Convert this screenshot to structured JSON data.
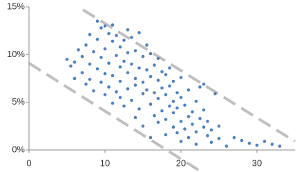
{
  "chart_data": {
    "type": "scatter",
    "color": "#4f81bd",
    "x": [
      5,
      5.5,
      6,
      6,
      6.5,
      7,
      7,
      7.5,
      7.5,
      8,
      8,
      8,
      8.5,
      8.5,
      9,
      9,
      9,
      9.5,
      9.5,
      9.5,
      10,
      10,
      10,
      10,
      10.5,
      10.5,
      10.5,
      11,
      11,
      11,
      11,
      11.5,
      11.5,
      11.5,
      12,
      12,
      12,
      12,
      12.5,
      12.5,
      12.5,
      13,
      13,
      13,
      13,
      13.5,
      13.5,
      13.5,
      14,
      14,
      14,
      14,
      14.5,
      14.5,
      14.5,
      15,
      15,
      15,
      15,
      15.5,
      15.5,
      15.5,
      16,
      16,
      16,
      16,
      16.5,
      16.5,
      16.5,
      17,
      17,
      17,
      17,
      17.5,
      17.5,
      17.5,
      18,
      18,
      18,
      18,
      18.5,
      18.5,
      18.5,
      19,
      19,
      19,
      19,
      19.5,
      19.5,
      19.5,
      20,
      20,
      20,
      20,
      20.5,
      20.5,
      21,
      21,
      21,
      21.5,
      21.5,
      22,
      22,
      22,
      22.5,
      22.5,
      23,
      23,
      23.5,
      23.5,
      24,
      24,
      25,
      25,
      26,
      27,
      28,
      29,
      30,
      31,
      32,
      33,
      24.5,
      23
    ],
    "values": [
      9.5,
      8.8,
      9.2,
      7.5,
      10.5,
      8.1,
      9.8,
      6.9,
      11.0,
      7.4,
      9.0,
      12.1,
      6.2,
      10.3,
      8.5,
      13.5,
      11.6,
      7.1,
      12.8,
      9.7,
      13.0,
      8.0,
      5.8,
      10.6,
      12.2,
      6.6,
      9.1,
      11.4,
      7.8,
      4.9,
      13.1,
      9.9,
      6.1,
      12.0,
      8.7,
      10.8,
      5.5,
      7.2,
      11.5,
      9.3,
      4.6,
      12.6,
      8.1,
      6.4,
      10.2,
      9.0,
      5.2,
      11.8,
      7.5,
      3.4,
      10.4,
      6.8,
      8.6,
      4.3,
      12.3,
      7.1,
      9.8,
      5.9,
      2.5,
      8.4,
      6.3,
      11.0,
      7.7,
      4.8,
      10.1,
      1.3,
      6.0,
      8.9,
      3.6,
      7.3,
      5.4,
      9.6,
      2.9,
      6.5,
      8.2,
      4.1,
      5.8,
      7.9,
      3.2,
      1.6,
      6.7,
      4.6,
      8.6,
      5.1,
      2.4,
      7.2,
      3.9,
      6.0,
      1.8,
      4.4,
      5.5,
      3.0,
      0.9,
      7.6,
      4.7,
      2.2,
      6.3,
      3.5,
      1.3,
      4.0,
      2.7,
      5.1,
      1.9,
      0.6,
      3.3,
      6.6,
      2.4,
      4.2,
      1.5,
      3.0,
      2.1,
      0.8,
      1.2,
      2.5,
      0.4,
      1.3,
      1.0,
      0.7,
      0.5,
      0.9,
      0.6,
      0.4,
      5.9,
      6.9
    ],
    "reference_lines": [
      {
        "x": [
          7.1,
          35
        ],
        "values": [
          14.7,
          0.9
        ],
        "color": "#bfbfbf"
      },
      {
        "x": [
          0,
          22.5
        ],
        "values": [
          9.1,
          -2.2
        ],
        "color": "#bfbfbf"
      }
    ],
    "xlim": [
      0,
      35
    ],
    "xticks": [
      0,
      10,
      20,
      30
    ],
    "ylim": [
      0,
      15
    ],
    "yticks": [
      {
        "value": 0,
        "label": "0%"
      },
      {
        "value": 5,
        "label": "5%"
      },
      {
        "value": 10,
        "label": "10%"
      },
      {
        "value": 15,
        "label": "15%"
      }
    ]
  }
}
